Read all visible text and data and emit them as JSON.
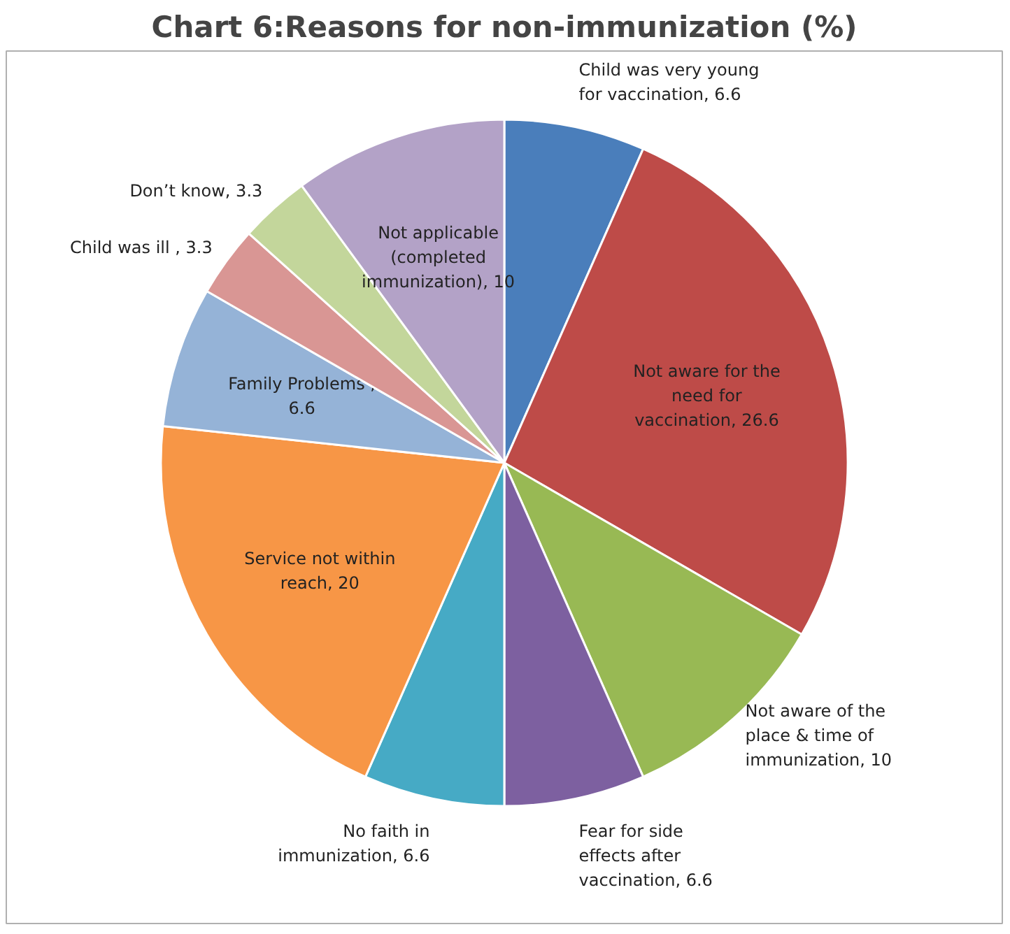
{
  "chart_data": {
    "type": "pie",
    "title": "Chart 6:Reasons for non-immunization (%)",
    "categories": [
      null,
      null,
      null,
      null,
      null,
      null,
      null,
      null,
      null,
      null
    ],
    "values": [
      6.6,
      26.6,
      10,
      6.6,
      6.6,
      20,
      6.6,
      3.3,
      3.3,
      10
    ],
    "colors": [
      "#4a7ebb",
      "#be4b48",
      "#98b954",
      "#7d60a0",
      "#46aac5",
      "#f79646",
      "#95b3d7",
      "#d99694",
      "#c3d69b",
      "#b3a2c7"
    ],
    "value_labels": [
      "Child was very young for vaccination, 6.6",
      "Not aware for the need for vaccination, 26.6",
      "Not aware of the place & time of immunization, 10",
      "Fear for side effects after vaccination, 6.6",
      "No faith in immunization, 6.6",
      "Service not within reach, 20",
      "Family Problems , 6.6",
      "Child was ill , 3.3",
      "Don’t know, 3.3",
      "Not applicable (completed immunization), 10"
    ]
  }
}
